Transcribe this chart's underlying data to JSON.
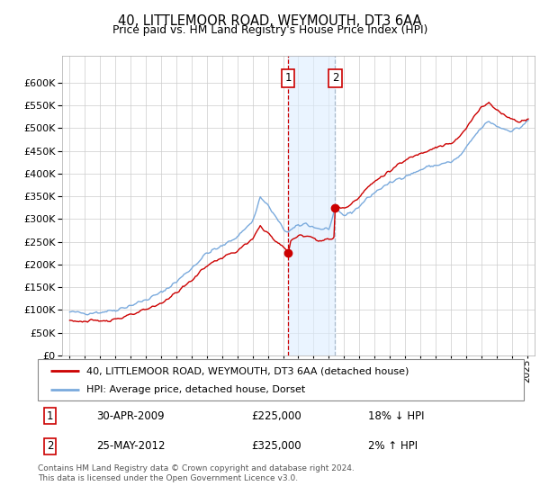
{
  "title": "40, LITTLEMOOR ROAD, WEYMOUTH, DT3 6AA",
  "subtitle": "Price paid vs. HM Land Registry's House Price Index (HPI)",
  "legend_line1": "40, LITTLEMOOR ROAD, WEYMOUTH, DT3 6AA (detached house)",
  "legend_line2": "HPI: Average price, detached house, Dorset",
  "footnote": "Contains HM Land Registry data © Crown copyright and database right 2024.\nThis data is licensed under the Open Government Licence v3.0.",
  "sale1_date": "30-APR-2009",
  "sale1_price": "£225,000",
  "sale1_hpi": "18% ↓ HPI",
  "sale2_date": "25-MAY-2012",
  "sale2_price": "£325,000",
  "sale2_hpi": "2% ↑ HPI",
  "ylim": [
    0,
    660000
  ],
  "yticks": [
    0,
    50000,
    100000,
    150000,
    200000,
    250000,
    300000,
    350000,
    400000,
    450000,
    500000,
    550000,
    600000
  ],
  "red_color": "#cc0000",
  "blue_color": "#7aaadd",
  "shade_color": "#ddeeff",
  "vline1_color": "#cc0000",
  "vline2_color": "#aabbcc",
  "vline1_x": 2009.33,
  "vline2_x": 2012.42,
  "dot1_x": 2009.33,
  "dot1_y": 225000,
  "dot2_x": 2012.42,
  "dot2_y": 325000,
  "xlim_left": 1994.5,
  "xlim_right": 2025.5
}
